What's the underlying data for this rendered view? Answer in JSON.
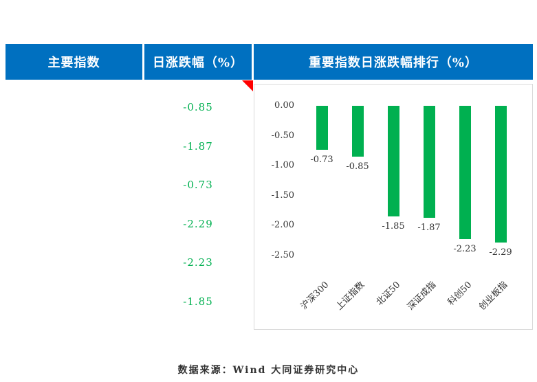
{
  "header": {
    "main_index_label": "主要指数",
    "daily_change_label": "日涨跌幅（%）",
    "chart_title": "重要指数日涨跌幅排行（%）"
  },
  "change_column": {
    "values": [
      "-0.85",
      "-1.87",
      "-0.73",
      "-2.29",
      "-2.23",
      "-1.85"
    ]
  },
  "chart_data": {
    "type": "bar",
    "title": "重要指数日涨跌幅排行（%）",
    "categories": [
      "沪深300",
      "上证指数",
      "北证50",
      "深证成指",
      "科创50",
      "创业板指"
    ],
    "values": [
      -0.73,
      -0.85,
      -1.85,
      -1.87,
      -2.23,
      -2.29
    ],
    "value_labels": [
      "-0.73",
      "-0.85",
      "-1.85",
      "-1.87",
      "-2.23",
      "-2.29"
    ],
    "y_ticks": [
      "0.00",
      "-0.50",
      "-1.00",
      "-1.50",
      "-2.00",
      "-2.50"
    ],
    "ylim": [
      -2.5,
      0
    ],
    "grid": false,
    "legend": false,
    "bar_color": "#00B050"
  },
  "footer": {
    "source_text": "数据来源：Wind 大同证券研究中心"
  },
  "colors": {
    "header_bg": "#0070C0",
    "value_green": "#00B050",
    "marker_red": "#FF0000"
  }
}
